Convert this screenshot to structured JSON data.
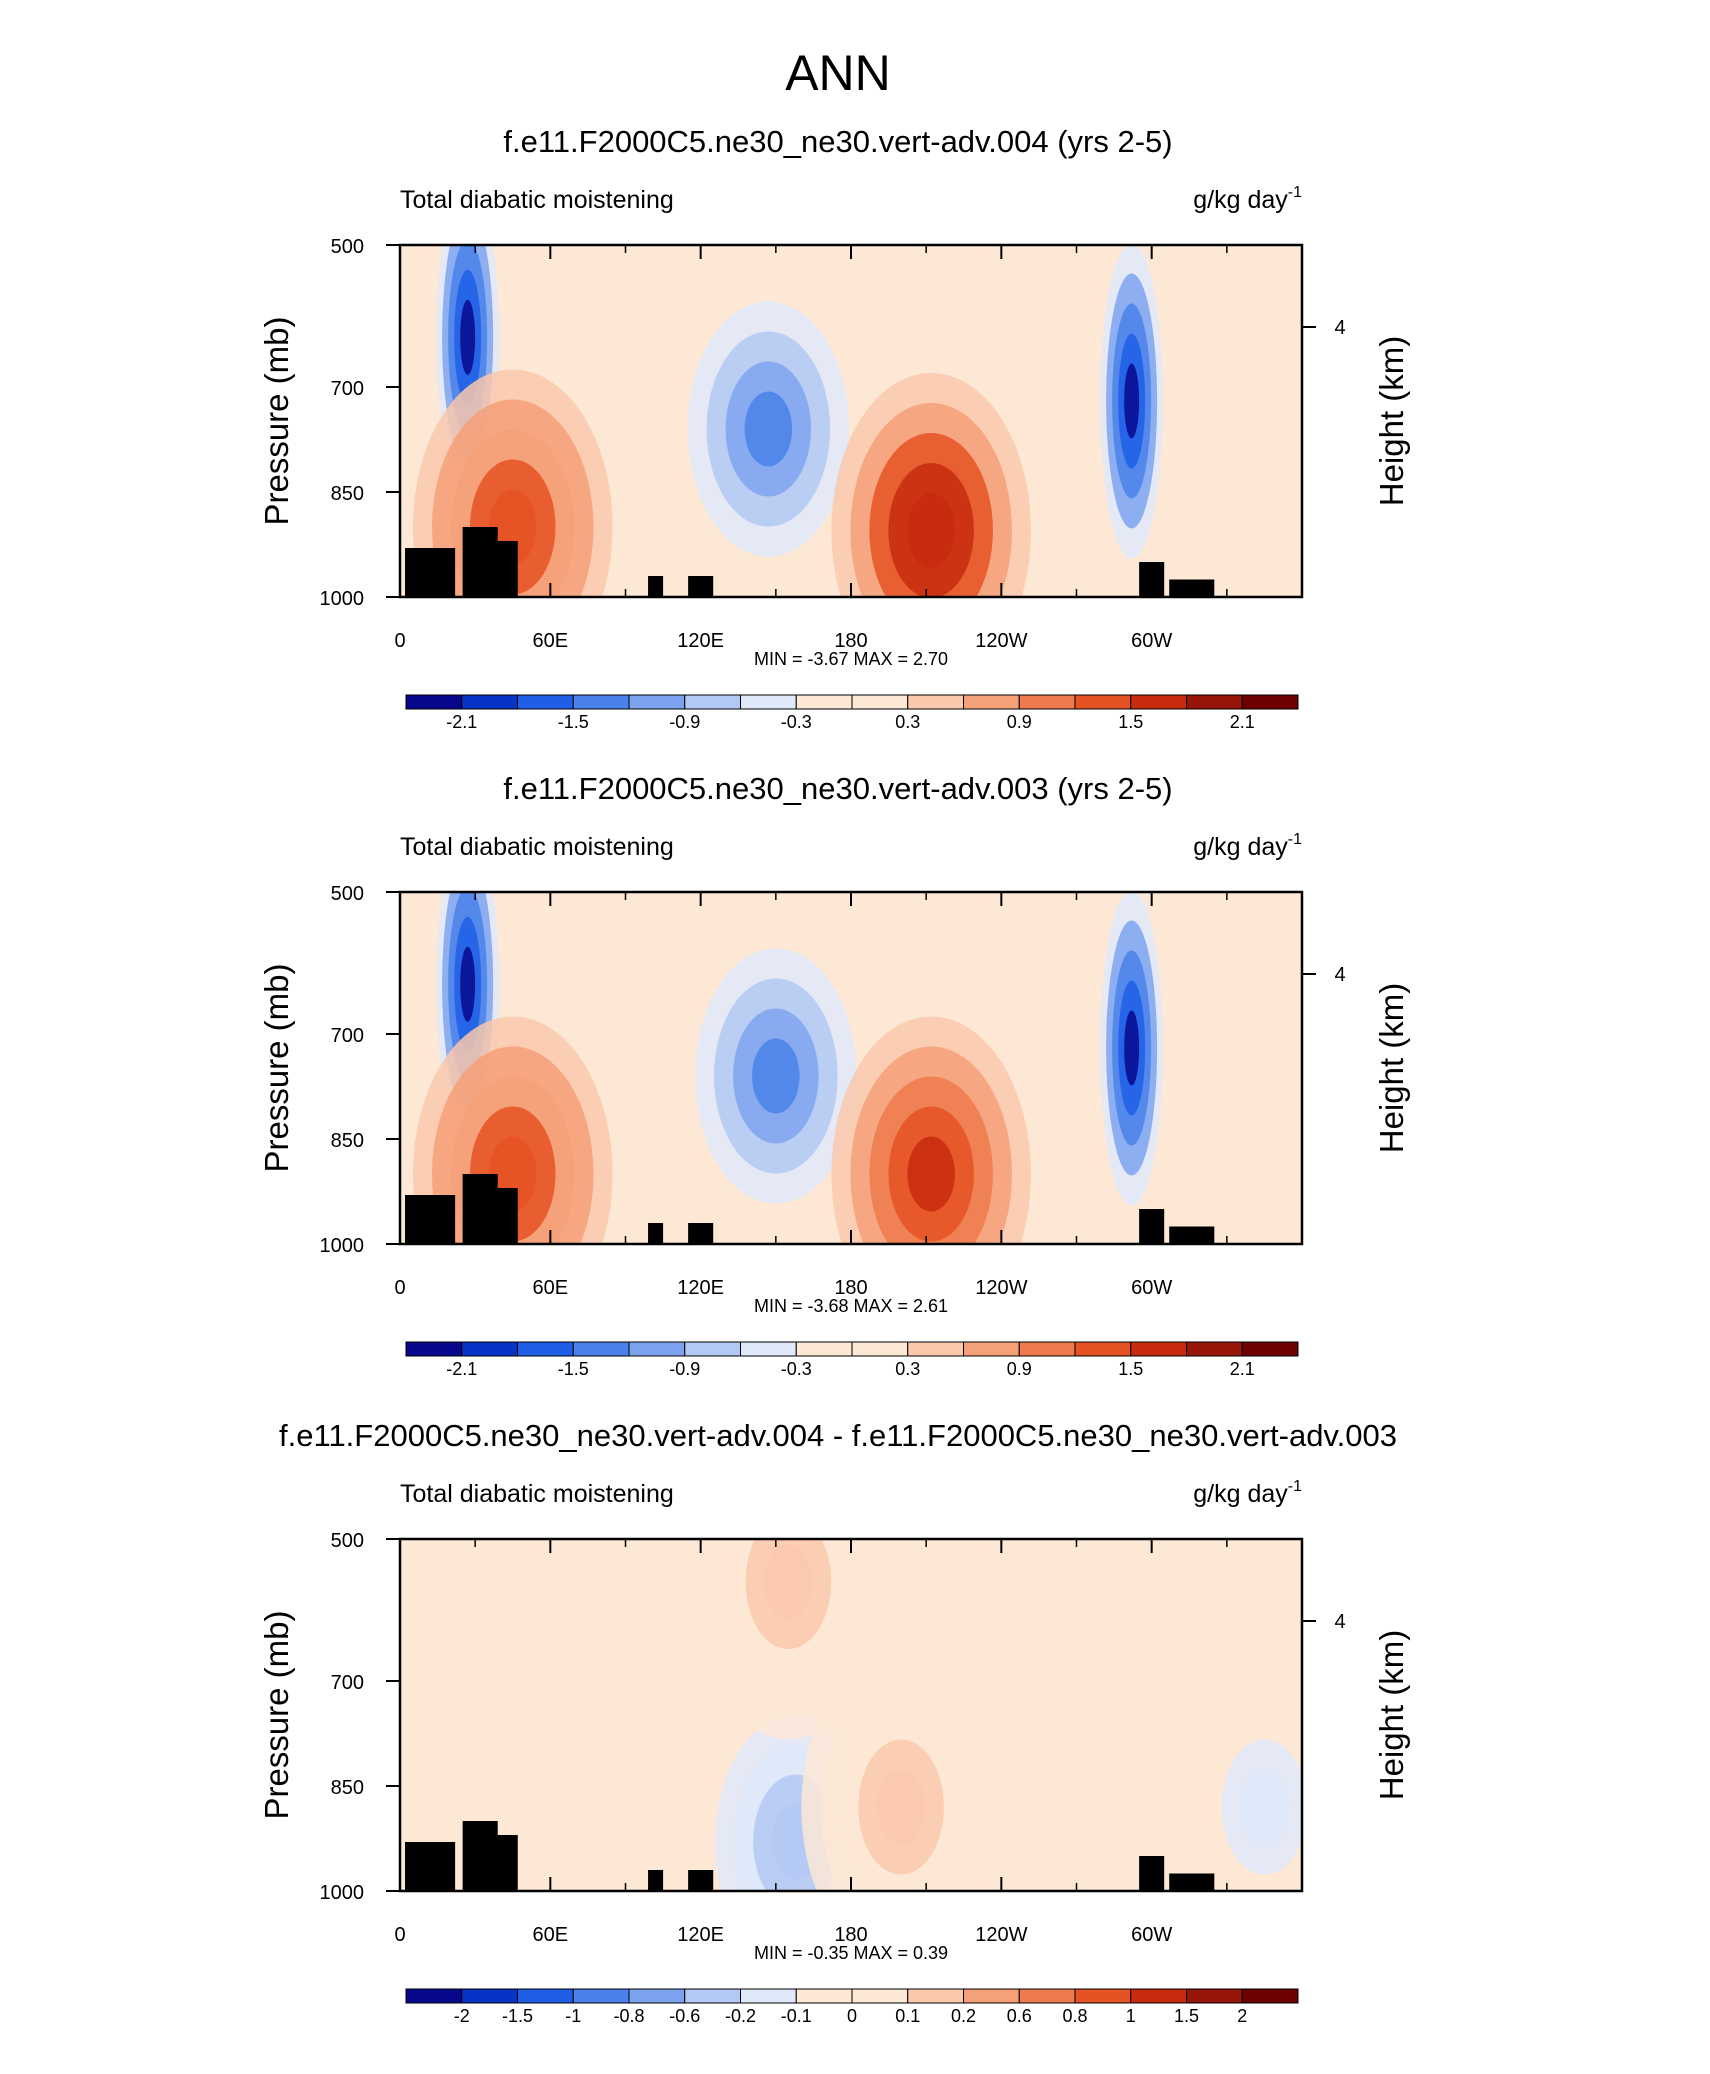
{
  "page": {
    "title": "ANN"
  },
  "colors": {
    "black_topography": "#000000",
    "palette_11": [
      "#08088c",
      "#0833c7",
      "#1f5fe8",
      "#4a82ea",
      "#7ea3ee",
      "#b3c8f2",
      "#dfe9fa",
      "#fde8d6",
      "#fac8ab",
      "#f4a079",
      "#ef7a4d",
      "#e55223",
      "#c72c0e",
      "#97150a",
      "#6e0000"
    ],
    "palette_diff": [
      "#08088c",
      "#0833c7",
      "#1f5fe8",
      "#4a82ea",
      "#7ea3ee",
      "#b3c8f2",
      "#dfe9fa",
      "#fde8d6",
      "#fac8ab",
      "#f4a079",
      "#ef7a4d",
      "#e55223",
      "#c72c0e",
      "#97150a",
      "#6e0000"
    ]
  },
  "panels": [
    {
      "title": "f.e11.F2000C5.ne30_ne30.vert-adv.004 (yrs 2-5)",
      "left_label": "Total diabatic moistening",
      "units_base": "g/kg day",
      "units_exp": "-1",
      "ylabel": "Pressure (mb)",
      "ylabel_right": "Height (km)",
      "yticks": [
        "500",
        "700",
        "850",
        "1000"
      ],
      "yticks_right": [
        "4"
      ],
      "xticks": [
        "0",
        "60E",
        "120E",
        "180",
        "120W",
        "60W"
      ],
      "stats": "MIN =  -3.67  MAX =   2.70",
      "colorbar_labels": [
        "-2.1",
        "-1.5",
        "-0.9",
        "-0.3",
        "0.3",
        "0.9",
        "1.5",
        "2.1"
      ]
    },
    {
      "title": "f.e11.F2000C5.ne30_ne30.vert-adv.003 (yrs 2-5)",
      "left_label": "Total diabatic moistening",
      "units_base": "g/kg day",
      "units_exp": "-1",
      "ylabel": "Pressure (mb)",
      "ylabel_right": "Height (km)",
      "yticks": [
        "500",
        "700",
        "850",
        "1000"
      ],
      "yticks_right": [
        "4"
      ],
      "xticks": [
        "0",
        "60E",
        "120E",
        "180",
        "120W",
        "60W"
      ],
      "stats": "MIN =  -3.68  MAX =   2.61",
      "colorbar_labels": [
        "-2.1",
        "-1.5",
        "-0.9",
        "-0.3",
        "0.3",
        "0.9",
        "1.5",
        "2.1"
      ]
    },
    {
      "title": "f.e11.F2000C5.ne30_ne30.vert-adv.004 - f.e11.F2000C5.ne30_ne30.vert-adv.003",
      "left_label": "Total diabatic moistening",
      "units_base": "g/kg day",
      "units_exp": "-1",
      "ylabel": "Pressure (mb)",
      "ylabel_right": "Height (km)",
      "yticks": [
        "500",
        "700",
        "850",
        "1000"
      ],
      "yticks_right": [
        "4"
      ],
      "xticks": [
        "0",
        "60E",
        "120E",
        "180",
        "120W",
        "60W"
      ],
      "stats": "MIN =  -0.35  MAX =   0.39",
      "colorbar_labels": [
        "-2",
        "-1.5",
        "-1",
        "-0.8",
        "-0.6",
        "-0.2",
        "-0.1",
        "0",
        "0.1",
        "0.2",
        "0.6",
        "0.8",
        "1",
        "1.5",
        "2"
      ]
    }
  ],
  "chart_data": [
    {
      "type": "heatmap",
      "title": "f.e11.F2000C5.ne30_ne30.vert-adv.004 (yrs 2-5)",
      "xlabel": "",
      "ylabel": "Pressure (mb)",
      "ylabel_right": "Height (km)",
      "units": "g/kg day-1",
      "x_range_deg": [
        0,
        360
      ],
      "xticks_deg": [
        0,
        60,
        120,
        180,
        240,
        300
      ],
      "ylim": [
        1000,
        500
      ],
      "min": -3.67,
      "max": 2.7,
      "contour_levels": [
        -2.4,
        -2.1,
        -1.8,
        -1.5,
        -1.2,
        -0.9,
        -0.6,
        -0.3,
        0,
        0.3,
        0.6,
        0.9,
        1.2,
        1.5,
        1.8,
        2.1,
        2.4
      ],
      "features": [
        {
          "lon": 27,
          "p": 630,
          "value": -2.4
        },
        {
          "lon": 147,
          "p": 760,
          "value": -1.2
        },
        {
          "lon": 212,
          "p": 905,
          "value": 2.1
        },
        {
          "lon": 292,
          "p": 720,
          "value": -2.4
        },
        {
          "lon": 45,
          "p": 900,
          "value": 1.5
        }
      ]
    },
    {
      "type": "heatmap",
      "title": "f.e11.F2000C5.ne30_ne30.vert-adv.003 (yrs 2-5)",
      "xlabel": "",
      "ylabel": "Pressure (mb)",
      "ylabel_right": "Height (km)",
      "units": "g/kg day-1",
      "x_range_deg": [
        0,
        360
      ],
      "xticks_deg": [
        0,
        60,
        120,
        180,
        240,
        300
      ],
      "ylim": [
        1000,
        500
      ],
      "min": -3.68,
      "max": 2.61,
      "contour_levels": [
        -2.4,
        -2.1,
        -1.8,
        -1.5,
        -1.2,
        -0.9,
        -0.6,
        -0.3,
        0,
        0.3,
        0.6,
        0.9,
        1.2,
        1.5,
        1.8,
        2.1,
        2.4
      ],
      "features": [
        {
          "lon": 27,
          "p": 630,
          "value": -2.4
        },
        {
          "lon": 150,
          "p": 760,
          "value": -1.2
        },
        {
          "lon": 212,
          "p": 900,
          "value": 1.8
        },
        {
          "lon": 292,
          "p": 720,
          "value": -2.4
        },
        {
          "lon": 45,
          "p": 900,
          "value": 1.5
        }
      ]
    },
    {
      "type": "heatmap",
      "title": "f.e11.F2000C5.ne30_ne30.vert-adv.004 - f.e11.F2000C5.ne30_ne30.vert-adv.003",
      "xlabel": "",
      "ylabel": "Pressure (mb)",
      "ylabel_right": "Height (km)",
      "units": "g/kg day-1",
      "x_range_deg": [
        0,
        360
      ],
      "xticks_deg": [
        0,
        60,
        120,
        180,
        240,
        300
      ],
      "ylim": [
        1000,
        500
      ],
      "min": -0.35,
      "max": 0.39,
      "contour_levels": [
        -2,
        -1.5,
        -1,
        -0.8,
        -0.6,
        -0.2,
        -0.1,
        0,
        0.1,
        0.2,
        0.6,
        0.8,
        1,
        1.5,
        2
      ],
      "features": [
        {
          "lon": 158,
          "p": 930,
          "value": -0.25
        },
        {
          "lon": 155,
          "p": 560,
          "value": 0.15
        },
        {
          "lon": 200,
          "p": 880,
          "value": 0.15
        },
        {
          "lon": 345,
          "p": 880,
          "value": -0.15
        }
      ]
    }
  ]
}
